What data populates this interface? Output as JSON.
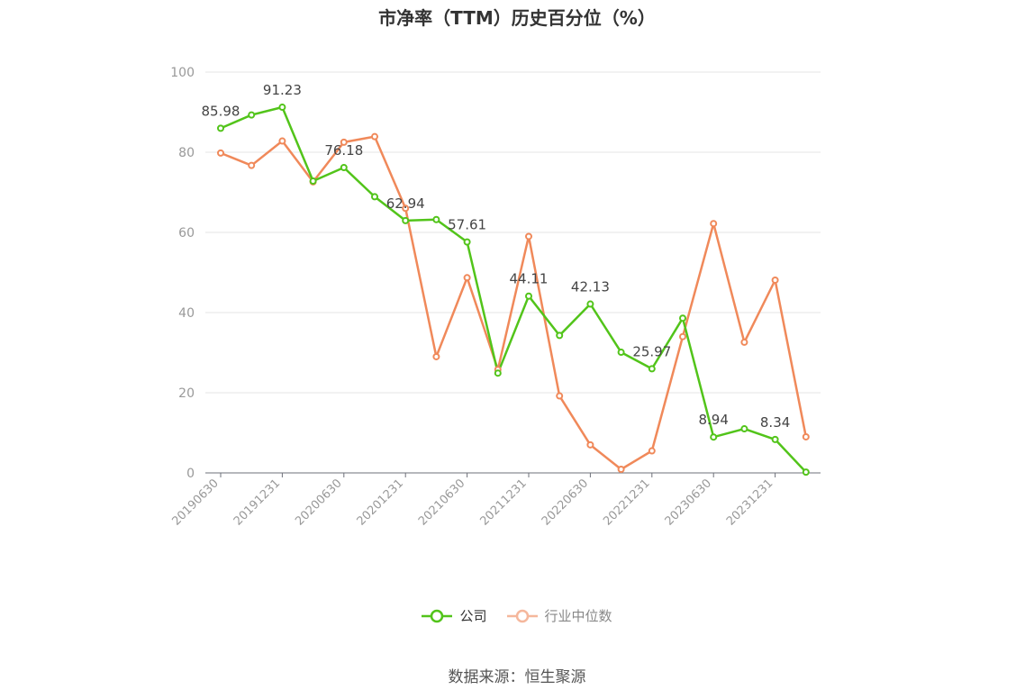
{
  "chart_data": {
    "type": "line",
    "title": "市净率（TTM）历史百分位（%）",
    "xlabel": "",
    "ylabel": "",
    "ylim": [
      0,
      100
    ],
    "yticks": [
      0,
      20,
      40,
      60,
      80,
      100
    ],
    "grid": true,
    "legend_position": "bottom",
    "x": [
      "20190630",
      "20190930",
      "20191231",
      "20200331",
      "20200630",
      "20200930",
      "20201231",
      "20210331",
      "20210630",
      "20210930",
      "20211231",
      "20220331",
      "20220630",
      "20220930",
      "20221231",
      "20230331",
      "20230630",
      "20230930",
      "20231231",
      "20240331"
    ],
    "x_tick_labels": [
      "20190630",
      "20191231",
      "20200630",
      "20201231",
      "20210630",
      "20211231",
      "20220630",
      "20221231",
      "20230630",
      "20231231"
    ],
    "series": [
      {
        "name": "公司",
        "color": "#52c41a",
        "values": [
          85.98,
          89.3,
          91.23,
          72.8,
          76.18,
          68.9,
          62.94,
          63.2,
          57.61,
          24.9,
          44.11,
          34.3,
          42.13,
          30.1,
          25.97,
          38.6,
          8.94,
          11.0,
          8.34,
          0.2
        ],
        "labels": [
          {
            "index": 0,
            "text": "85.98"
          },
          {
            "index": 2,
            "text": "91.23"
          },
          {
            "index": 4,
            "text": "76.18"
          },
          {
            "index": 6,
            "text": "62.94"
          },
          {
            "index": 8,
            "text": "57.61"
          },
          {
            "index": 10,
            "text": "44.11"
          },
          {
            "index": 12,
            "text": "42.13"
          },
          {
            "index": 14,
            "text": "25.97"
          },
          {
            "index": 16,
            "text": "8.94"
          },
          {
            "index": 18,
            "text": "8.34"
          }
        ]
      },
      {
        "name": "行业中位数",
        "color": "#f0895a",
        "values": [
          79.8,
          76.7,
          82.8,
          72.6,
          82.5,
          83.9,
          66.0,
          29.0,
          48.7,
          25.8,
          59.0,
          19.2,
          7.0,
          0.9,
          5.5,
          34.0,
          62.2,
          32.6,
          48.1,
          9.0
        ]
      }
    ]
  },
  "legend": {
    "company": "公司",
    "industry": "行业中位数"
  },
  "source": "数据来源：恒生聚源"
}
